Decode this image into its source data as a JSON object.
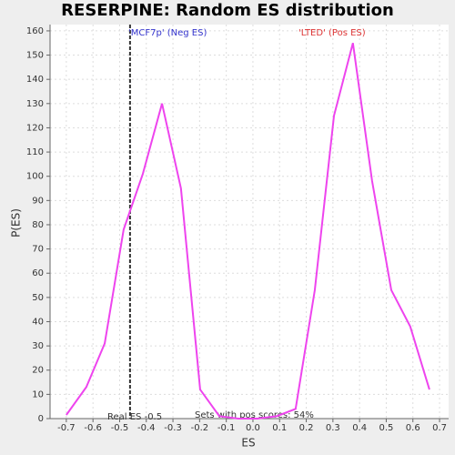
{
  "chart_data": {
    "type": "line",
    "title": "RESERPINE: Random ES distribution",
    "x_label": "ES",
    "y_label": "P(ES)",
    "x": [
      -0.7,
      -0.625,
      -0.556,
      -0.485,
      -0.413,
      -0.341,
      -0.27,
      -0.198,
      -0.126,
      -0.055,
      0.017,
      0.089,
      0.16,
      0.232,
      0.304,
      0.375,
      0.447,
      0.519,
      0.59,
      0.662
    ],
    "series": [
      {
        "name": "P(ES)",
        "color": "#ee44ee",
        "values": [
          1.5,
          13,
          31,
          78,
          101,
          130,
          95,
          12,
          1,
          0,
          0,
          1,
          4,
          53,
          125,
          155,
          98,
          53,
          38,
          12
        ]
      }
    ],
    "xlim": [
      -0.761,
      0.734
    ],
    "ylim": [
      0,
      162.6
    ],
    "xticks": [
      -0.7,
      -0.6,
      -0.5,
      -0.4,
      -0.3,
      -0.2,
      -0.1,
      {
        "value": 0,
        "label": "0.0"
      },
      0.1,
      0.2,
      0.3,
      0.4,
      0.5,
      0.6,
      0.7
    ],
    "yticks": [
      0,
      10,
      20,
      30,
      40,
      50,
      60,
      70,
      80,
      90,
      100,
      110,
      120,
      130,
      140,
      150,
      160
    ],
    "grid": true,
    "real_es_x": -0.461,
    "neg_label": "'MCF7p' (Neg ES)",
    "pos_label": "'LTED' (Pos ES)",
    "real_es_label": "Real ES -0.5",
    "pos_scores_label": "Sets with pos scores: 54%"
  }
}
